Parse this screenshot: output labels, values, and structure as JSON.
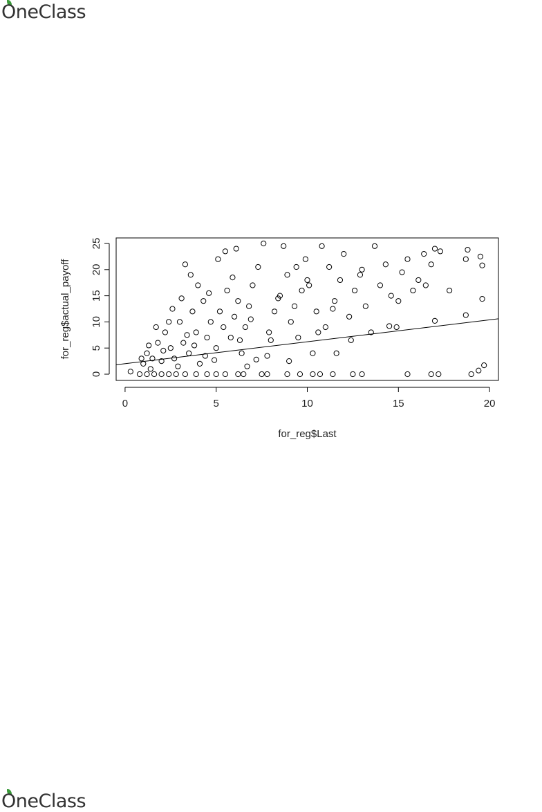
{
  "header": {
    "logo": "OneClass"
  },
  "footer": {
    "logo": "OneClass"
  },
  "chart_data": {
    "type": "scatter",
    "xlabel": "for_reg$Last",
    "ylabel": "for_reg$actual_payoff",
    "xlim": [
      -0.49,
      20.49
    ],
    "ylim": [
      -1.19,
      26.06
    ],
    "xticks": [
      0,
      5,
      10,
      15,
      20
    ],
    "yticks": [
      0,
      5,
      10,
      15,
      20,
      25
    ],
    "grid": false,
    "color": "#000000",
    "x": [
      0.3,
      0.8,
      1.2,
      1.6,
      2.0,
      2.4,
      2.8,
      3.3,
      3.9,
      4.5,
      5.0,
      5.5,
      6.2,
      6.5,
      7.5,
      7.8,
      8.9,
      9.6,
      10.3,
      10.7,
      11.4,
      12.5,
      13.0,
      15.5,
      16.8,
      17.2,
      19.0,
      19.4,
      19.7,
      1.0,
      1.2,
      1.5,
      1.8,
      2.0,
      2.2,
      2.5,
      2.7,
      3.0,
      3.2,
      3.5,
      3.7,
      3.9,
      4.1,
      4.3,
      4.5,
      4.7,
      5.0,
      5.2,
      5.4,
      5.6,
      5.8,
      6.0,
      6.2,
      6.4,
      6.6,
      6.8,
      7.0,
      2.4,
      3.1,
      3.3,
      3.6,
      4.0,
      4.4,
      1.4,
      2.9,
      4.9,
      5.1,
      5.5,
      6.1,
      2.6,
      1.7,
      3.8,
      4.6,
      5.9,
      6.3,
      6.9,
      7.3,
      7.6,
      7.8,
      7.9,
      8.2,
      8.5,
      8.7,
      8.9,
      9.1,
      9.3,
      9.5,
      9.7,
      9.9,
      10.1,
      10.3,
      10.5,
      10.8,
      11.0,
      11.2,
      11.5,
      11.8,
      12.0,
      12.3,
      12.6,
      12.9,
      13.2,
      13.5,
      13.7,
      14.0,
      14.3,
      14.6,
      14.9,
      15.2,
      15.5,
      15.8,
      16.1,
      16.4,
      16.8,
      17.0,
      17.0,
      17.3,
      17.8,
      18.7,
      18.7,
      18.8,
      19.5,
      19.6,
      19.6,
      8.0,
      9.0,
      10.0,
      11.6,
      12.4,
      14.5,
      6.7,
      7.2,
      8.4,
      9.4,
      10.6,
      11.4,
      13.0,
      15.0,
      16.5,
      3.4,
      2.1,
      1.3,
      0.9
    ],
    "values": [
      0.5,
      0,
      0,
      0,
      0,
      0,
      0,
      0,
      0,
      0,
      0,
      0,
      0,
      0,
      0,
      0,
      0,
      0,
      0,
      0,
      0,
      0,
      0,
      0,
      0,
      0,
      0,
      0.7,
      1.7,
      2,
      4,
      3,
      6,
      2.5,
      8,
      5,
      3,
      10,
      6,
      4,
      12,
      8,
      2,
      14,
      7,
      10,
      5,
      12,
      9,
      16,
      7,
      11,
      14,
      4,
      9,
      13,
      17,
      10,
      14.5,
      21,
      19,
      17,
      3.5,
      1,
      1.5,
      2.7,
      22,
      23.5,
      24,
      12.5,
      9,
      5.5,
      15.5,
      18.5,
      6.5,
      10.5,
      20.5,
      25,
      3.5,
      8,
      12,
      15,
      24.5,
      19,
      10,
      13,
      7,
      16,
      22,
      17,
      4,
      12,
      24.5,
      9,
      20.5,
      14,
      18,
      23,
      11,
      16,
      19,
      13,
      8,
      24.5,
      17,
      21,
      15,
      9,
      19.5,
      22,
      16,
      18,
      23,
      21,
      10.2,
      24,
      23.5,
      16,
      22,
      11.3,
      23.8,
      22.5,
      20.8,
      14.4,
      6.5,
      2.5,
      18,
      4,
      6.5,
      9.2,
      1.5,
      2.8,
      14.5,
      20.5,
      8,
      12.5,
      20,
      14,
      17,
      7.5,
      4.5,
      5.5,
      3
    ],
    "fit_line": {
      "x": [
        -0.49,
        20.49
      ],
      "y": [
        1.8,
        10.6
      ]
    }
  }
}
